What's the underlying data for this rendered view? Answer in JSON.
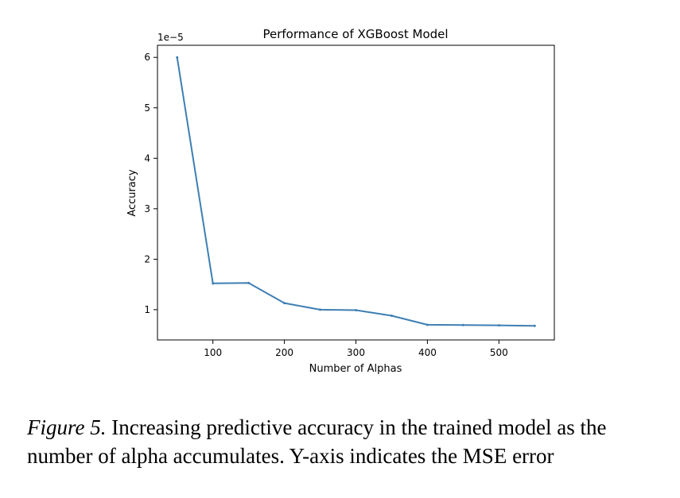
{
  "chart_data": {
    "type": "line",
    "title": "Performance of XGBoost Model",
    "xlabel": "Number of Alphas",
    "ylabel": "Accuracy",
    "y_offset_label": "1e−5",
    "x": [
      50,
      100,
      150,
      200,
      250,
      300,
      350,
      400,
      450,
      500,
      550
    ],
    "series": [
      {
        "name": "Accuracy",
        "values": [
          6.0,
          1.52,
          1.53,
          1.13,
          1.0,
          0.99,
          0.88,
          0.7,
          0.695,
          0.69,
          0.68
        ],
        "color": "#3e7fb3"
      }
    ],
    "xticks": [
      100,
      200,
      300,
      400,
      500
    ],
    "yticks": [
      1,
      2,
      3,
      4,
      5,
      6
    ],
    "xlim": [
      22.5,
      577.5
    ],
    "ylim": [
      0.4,
      6.24
    ],
    "grid": false
  },
  "caption": {
    "label": "Figure 5.",
    "text": " Increasing predictive accuracy in the trained model as the number of alpha accumulates. Y-axis indicates the MSE error"
  }
}
